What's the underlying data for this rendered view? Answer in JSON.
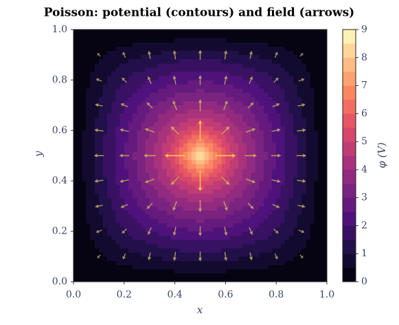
{
  "chart_data": {
    "type": "contour",
    "title": "Poisson: potential (contours) and field (arrows)",
    "xlabel": "x",
    "ylabel": "y",
    "colorbar_label": "φ (V)",
    "x": [
      0,
      0.1,
      0.2,
      0.3,
      0.4,
      0.5,
      0.6,
      0.7,
      0.8,
      0.9,
      1
    ],
    "y": [
      0,
      0.1,
      0.2,
      0.3,
      0.4,
      0.5,
      0.6,
      0.7,
      0.8,
      0.9,
      1
    ],
    "z": [
      [
        0,
        0,
        0,
        0,
        0,
        0,
        0,
        0,
        0,
        0,
        0
      ],
      [
        0,
        0.4,
        0.8,
        1.0,
        1.2,
        1.3,
        1.2,
        1.0,
        0.8,
        0.4,
        0
      ],
      [
        0,
        0.8,
        1.5,
        2.0,
        2.3,
        2.5,
        2.3,
        2.0,
        1.5,
        0.8,
        0
      ],
      [
        0,
        1.0,
        2.0,
        2.9,
        3.5,
        3.8,
        3.5,
        2.9,
        2.0,
        1.0,
        0
      ],
      [
        0,
        1.2,
        2.3,
        3.5,
        4.7,
        5.5,
        4.7,
        3.5,
        2.3,
        1.2,
        0
      ],
      [
        0,
        1.3,
        2.5,
        3.8,
        5.5,
        9.0,
        5.5,
        3.8,
        2.5,
        1.3,
        0
      ],
      [
        0,
        1.2,
        2.3,
        3.5,
        4.7,
        5.5,
        4.7,
        3.5,
        2.3,
        1.2,
        0
      ],
      [
        0,
        1.0,
        2.0,
        2.9,
        3.5,
        3.8,
        3.5,
        2.9,
        2.0,
        1.0,
        0
      ],
      [
        0,
        0.8,
        1.5,
        2.0,
        2.3,
        2.5,
        2.3,
        2.0,
        1.5,
        0.8,
        0
      ],
      [
        0,
        0.4,
        0.8,
        1.0,
        1.2,
        1.3,
        1.2,
        1.0,
        0.8,
        0.4,
        0
      ],
      [
        0,
        0,
        0,
        0,
        0,
        0,
        0,
        0,
        0,
        0,
        0
      ]
    ],
    "levels": [
      0,
      0.5,
      1,
      1.5,
      2,
      2.5,
      3,
      3.5,
      4,
      4.5,
      5,
      5.5,
      6,
      6.5,
      7,
      7.5,
      8,
      8.5,
      9
    ],
    "colormap": [
      "#000004",
      "#1c1044",
      "#4f127b",
      "#812581",
      "#b5367a",
      "#e55064",
      "#fb8761",
      "#fec287",
      "#fcfdbf"
    ],
    "arrow_colors": [
      "#8a8470",
      "#ffd84a"
    ],
    "xlim": [
      0,
      1
    ],
    "ylim": [
      0,
      1
    ],
    "xticks": [
      {
        "value": 0,
        "label": "0.0"
      },
      0.2,
      0.4,
      0.6,
      0.8,
      {
        "value": 1,
        "label": "1.0"
      }
    ],
    "yticks": [
      {
        "value": 0,
        "label": "0.0"
      },
      0.2,
      0.4,
      0.6,
      0.8,
      {
        "value": 1,
        "label": "1.0"
      }
    ],
    "colorbar_ticks": [
      0,
      1,
      2,
      3,
      4,
      5,
      6,
      7,
      8,
      9
    ]
  }
}
